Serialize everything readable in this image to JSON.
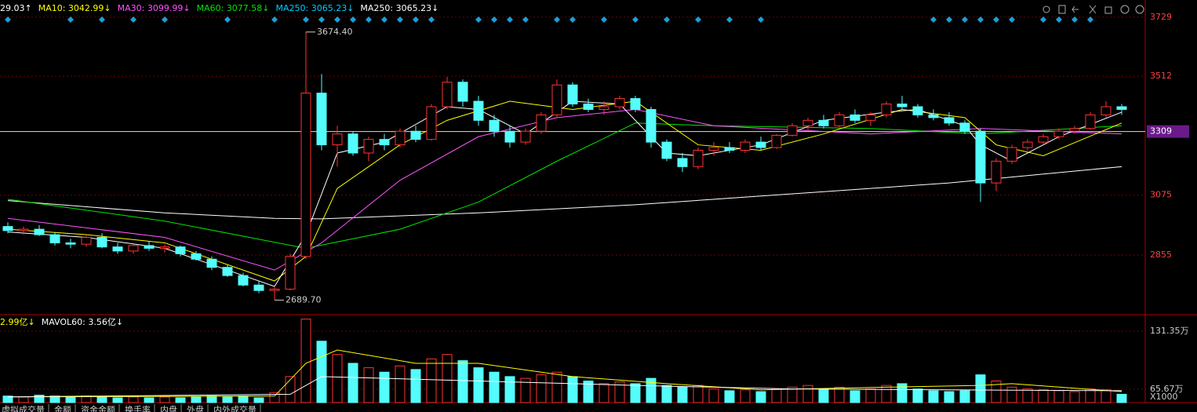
{
  "chart_data": {
    "type": "candlestick",
    "legend": [
      {
        "text": "29.03↑",
        "color": "#ffffff"
      },
      {
        "text": "MA10: 3042.99↓",
        "color": "#ffff00"
      },
      {
        "text": "MA30: 3099.99↓",
        "color": "#ff55ff"
      },
      {
        "text": "MA60: 3077.58↓",
        "color": "#00e600"
      },
      {
        "text": "MA250: 3065.23↓",
        "color": "#00ccff"
      },
      {
        "text": "MA250: 3065.23↓",
        "color": "#ffffff"
      }
    ],
    "ylim": [
      2639,
      3792
    ],
    "yticks": [
      2855,
      3075,
      3512,
      3729
    ],
    "current_price": 3309,
    "high_label": "3674.40",
    "low_label": "2689.70",
    "up_color": "#ff3232",
    "down_color": "#54fcfc",
    "open": [
      2960,
      2945,
      2950,
      2930,
      2900,
      2895,
      2920,
      2885,
      2870,
      2890,
      2880,
      2885,
      2860,
      2840,
      2810,
      2780,
      2745,
      2725,
      2730,
      2850,
      3450,
      3260,
      3300,
      3230,
      3280,
      3260,
      3310,
      3280,
      3400,
      3490,
      3420,
      3350,
      3310,
      3270,
      3310,
      3370,
      3480,
      3410,
      3390,
      3400,
      3430,
      3390,
      3270,
      3210,
      3180,
      3240,
      3250,
      3240,
      3270,
      3250,
      3295,
      3330,
      3350,
      3330,
      3370,
      3350,
      3370,
      3410,
      3400,
      3370,
      3360,
      3340,
      3310,
      3120,
      3200,
      3250,
      3270,
      3290,
      3310,
      3320,
      3370,
      3400
    ],
    "high": [
      2975,
      2960,
      2965,
      2940,
      2915,
      2930,
      2935,
      2900,
      2895,
      2905,
      2895,
      2890,
      2870,
      2850,
      2820,
      2790,
      2760,
      2740,
      2860,
      3674.4,
      3520,
      3330,
      3310,
      3290,
      3300,
      3320,
      3330,
      3410,
      3510,
      3500,
      3440,
      3370,
      3330,
      3320,
      3380,
      3500,
      3490,
      3430,
      3420,
      3440,
      3440,
      3400,
      3280,
      3230,
      3250,
      3270,
      3270,
      3280,
      3290,
      3300,
      3340,
      3360,
      3370,
      3380,
      3390,
      3380,
      3420,
      3440,
      3410,
      3390,
      3380,
      3350,
      3320,
      3210,
      3260,
      3280,
      3300,
      3320,
      3330,
      3380,
      3420,
      3410
    ],
    "low": [
      2935,
      2930,
      2925,
      2890,
      2880,
      2885,
      2880,
      2860,
      2860,
      2870,
      2865,
      2850,
      2835,
      2800,
      2775,
      2740,
      2715,
      2689.7,
      2725,
      2840,
      3240,
      3180,
      3220,
      3200,
      3240,
      3250,
      3270,
      3275,
      3390,
      3400,
      3330,
      3290,
      3250,
      3260,
      3300,
      3360,
      3400,
      3380,
      3370,
      3390,
      3380,
      3250,
      3200,
      3160,
      3170,
      3220,
      3230,
      3230,
      3240,
      3245,
      3290,
      3310,
      3320,
      3325,
      3340,
      3330,
      3360,
      3390,
      3360,
      3350,
      3330,
      3300,
      3050,
      3090,
      3190,
      3240,
      3260,
      3280,
      3300,
      3315,
      3360,
      3370
    ],
    "close": [
      2945,
      2950,
      2930,
      2900,
      2895,
      2920,
      2885,
      2870,
      2890,
      2880,
      2885,
      2860,
      2840,
      2810,
      2780,
      2745,
      2725,
      2730,
      2850,
      3450,
      3260,
      3300,
      3230,
      3280,
      3260,
      3310,
      3280,
      3400,
      3490,
      3420,
      3350,
      3310,
      3270,
      3310,
      3370,
      3480,
      3410,
      3390,
      3400,
      3430,
      3390,
      3270,
      3210,
      3180,
      3240,
      3250,
      3240,
      3270,
      3250,
      3295,
      3330,
      3350,
      3330,
      3370,
      3350,
      3370,
      3410,
      3400,
      3370,
      3360,
      3340,
      3310,
      3120,
      3200,
      3250,
      3270,
      3290,
      3310,
      3320,
      3370,
      3400,
      3390
    ],
    "event_markers": [
      0,
      4,
      6,
      8,
      10,
      14,
      17,
      19,
      20,
      21,
      22,
      23,
      24,
      25,
      26,
      27,
      30,
      31,
      32,
      33,
      35,
      36,
      38,
      40,
      42,
      44,
      46,
      48,
      59,
      60,
      61,
      62,
      63,
      64,
      66,
      67,
      68,
      69
    ],
    "lines": [
      {
        "color": "#ffffff",
        "x": [
          0,
          10,
          17,
          20,
          30,
          40,
          50,
          60,
          71
        ],
        "values": [
          3055,
          3010,
          2990,
          2988,
          3010,
          3040,
          3080,
          3120,
          3180
        ]
      },
      {
        "color": "#00e600",
        "x": [
          0,
          10,
          19,
          25,
          30,
          35,
          40,
          45,
          55,
          62,
          71
        ],
        "values": [
          3060,
          2980,
          2880,
          2950,
          3050,
          3200,
          3340,
          3330,
          3320,
          3300,
          3330
        ]
      },
      {
        "color": "#ff55ff",
        "x": [
          0,
          10,
          17,
          20,
          25,
          30,
          35,
          40,
          45,
          55,
          62,
          71
        ],
        "values": [
          2990,
          2920,
          2800,
          2900,
          3130,
          3290,
          3360,
          3390,
          3330,
          3300,
          3320,
          3300
        ]
      },
      {
        "color": "#ffff00",
        "x": [
          0,
          5,
          10,
          17,
          19,
          21,
          25,
          28,
          32,
          36,
          40,
          44,
          48,
          52,
          57,
          61,
          63,
          66,
          71
        ],
        "values": [
          2950,
          2930,
          2900,
          2760,
          2850,
          3100,
          3260,
          3350,
          3420,
          3390,
          3420,
          3260,
          3240,
          3300,
          3390,
          3360,
          3260,
          3220,
          3340
        ]
      },
      {
        "color": "#ffffff",
        "x": [
          0,
          5,
          10,
          15,
          17,
          19,
          21,
          24,
          28,
          30,
          33,
          36,
          39,
          42,
          44,
          48,
          52,
          56,
          58,
          61,
          62,
          64,
          67,
          71
        ],
        "values": [
          2940,
          2920,
          2880,
          2780,
          2740,
          2930,
          3230,
          3270,
          3400,
          3390,
          3300,
          3420,
          3410,
          3230,
          3220,
          3260,
          3350,
          3380,
          3390,
          3330,
          3260,
          3200,
          3290,
          3380
        ]
      }
    ],
    "volume": {
      "legend": [
        {
          "text": "2.99亿↓",
          "color": "#ffff00"
        },
        {
          "text": "MAVOL60: 3.56亿↓",
          "color": "#ffffff"
        }
      ],
      "ylim": [
        50.6,
        148.2
      ],
      "yticks": [
        {
          "value": 65.67,
          "label": "65.67万"
        },
        {
          "value": 131.35,
          "label": "131.35万"
        }
      ],
      "unit_label": "X1000",
      "values": [
        58,
        57,
        59,
        58,
        57,
        58,
        57,
        56,
        57,
        56,
        57,
        56,
        57,
        58,
        57,
        58,
        56,
        62,
        80,
        145,
        120,
        105,
        95,
        90,
        85,
        92,
        88,
        100,
        105,
        98,
        90,
        85,
        80,
        78,
        82,
        85,
        80,
        75,
        72,
        74,
        72,
        78,
        70,
        68,
        70,
        66,
        64,
        65,
        63,
        66,
        68,
        70,
        66,
        68,
        64,
        66,
        70,
        72,
        66,
        64,
        63,
        64,
        82,
        75,
        68,
        66,
        65,
        64,
        63,
        66,
        65,
        60
      ],
      "lines": [
        {
          "color": "#ffff00",
          "x": [
            0,
            17,
            19,
            21,
            26,
            30,
            36,
            42,
            48,
            56,
            62,
            64,
            71
          ],
          "values": [
            57,
            58,
            95,
            110,
            95,
            95,
            80,
            72,
            65,
            68,
            70,
            72,
            63
          ]
        },
        {
          "color": "#ffffff",
          "x": [
            0,
            18,
            20,
            30,
            40,
            50,
            60,
            71
          ],
          "values": [
            57,
            60,
            80,
            75,
            70,
            66,
            65,
            64
          ]
        }
      ]
    },
    "tabs": [
      "虚拟成交量",
      "金额",
      "资金金额",
      "换手率",
      "内盘",
      "外盘",
      "内外成交量"
    ]
  }
}
